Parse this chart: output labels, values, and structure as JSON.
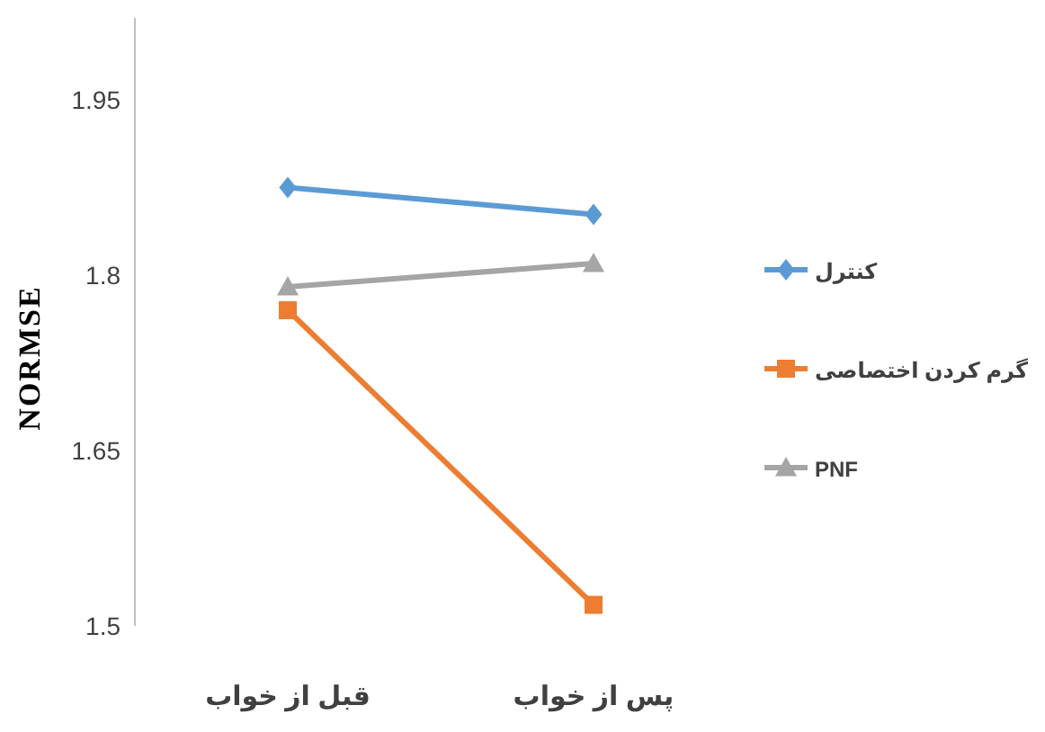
{
  "chart_data": {
    "type": "line",
    "ylabel": "NORMSE",
    "categories": [
      "قبل از خواب",
      "پس از خواب"
    ],
    "ylim": [
      1.5,
      2.02
    ],
    "yticks": [
      1.5,
      1.65,
      1.8,
      1.95
    ],
    "grid": false,
    "legend": "right",
    "series": [
      {
        "name": "کنترل",
        "color": "#5b9bd5",
        "marker": "diamond",
        "values": [
          1.875,
          1.852
        ]
      },
      {
        "name": "گرم کردن اختصاصی",
        "color": "#ed7d31",
        "marker": "square",
        "values": [
          1.77,
          1.518
        ]
      },
      {
        "name": "PNF",
        "color": "#a5a5a5",
        "marker": "triangle",
        "values": [
          1.79,
          1.81
        ]
      }
    ]
  }
}
